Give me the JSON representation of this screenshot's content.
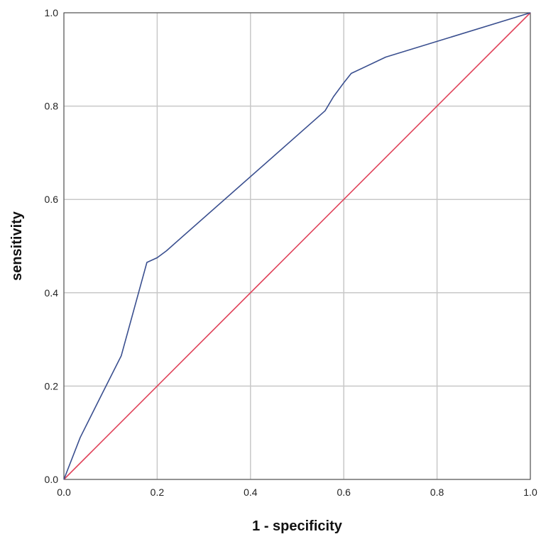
{
  "chart_data": {
    "type": "line",
    "title": "",
    "xlabel": "1 - specificity",
    "ylabel": "sensitivity",
    "xlim": [
      0,
      1
    ],
    "ylim": [
      0,
      1
    ],
    "x_ticks": [
      "0.0",
      "0.2",
      "0.4",
      "0.6",
      "0.8",
      "1.0"
    ],
    "y_ticks": [
      "0.0",
      "0.2",
      "0.4",
      "0.6",
      "0.8",
      "1.0"
    ],
    "grid": true,
    "legend": "none",
    "series": [
      {
        "color": "#3a4f8f",
        "points": [
          [
            0.0,
            0.0
          ],
          [
            0.035,
            0.09
          ],
          [
            0.08,
            0.18
          ],
          [
            0.123,
            0.265
          ],
          [
            0.178,
            0.465
          ],
          [
            0.2,
            0.475
          ],
          [
            0.22,
            0.49
          ],
          [
            0.56,
            0.79
          ],
          [
            0.578,
            0.82
          ],
          [
            0.6,
            0.85
          ],
          [
            0.616,
            0.87
          ],
          [
            0.69,
            0.905
          ],
          [
            1.0,
            1.0
          ]
        ]
      },
      {
        "color": "#e0435a",
        "points": [
          [
            0.0,
            0.0
          ],
          [
            1.0,
            1.0
          ]
        ]
      }
    ]
  }
}
